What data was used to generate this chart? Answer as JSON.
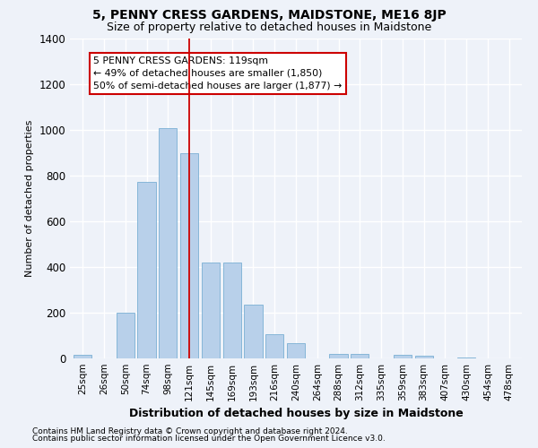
{
  "title": "5, PENNY CRESS GARDENS, MAIDSTONE, ME16 8JP",
  "subtitle": "Size of property relative to detached houses in Maidstone",
  "xlabel": "Distribution of detached houses by size in Maidstone",
  "ylabel": "Number of detached properties",
  "footnote1": "Contains HM Land Registry data © Crown copyright and database right 2024.",
  "footnote2": "Contains public sector information licensed under the Open Government Licence v3.0.",
  "categories": [
    "25sqm",
    "26sqm",
    "50sqm",
    "74sqm",
    "98sqm",
    "121sqm",
    "145sqm",
    "169sqm",
    "193sqm",
    "216sqm",
    "240sqm",
    "264sqm",
    "288sqm",
    "312sqm",
    "335sqm",
    "359sqm",
    "383sqm",
    "407sqm",
    "430sqm",
    "454sqm",
    "478sqm"
  ],
  "values": [
    15,
    0,
    200,
    770,
    1005,
    895,
    420,
    420,
    235,
    105,
    65,
    0,
    20,
    20,
    0,
    15,
    10,
    0,
    5,
    0,
    0
  ],
  "bar_color": "#b8d0ea",
  "bar_edge_color": "#7aafd4",
  "vline_x": 5,
  "vline_color": "#cc0000",
  "ylim": [
    0,
    1400
  ],
  "yticks": [
    0,
    200,
    400,
    600,
    800,
    1000,
    1200,
    1400
  ],
  "annotation_text": "5 PENNY CRESS GARDENS: 119sqm\n← 49% of detached houses are smaller (1,850)\n50% of semi-detached houses are larger (1,877) →",
  "bg_color": "#eef2f9",
  "title_fontsize": 10,
  "subtitle_fontsize": 9
}
